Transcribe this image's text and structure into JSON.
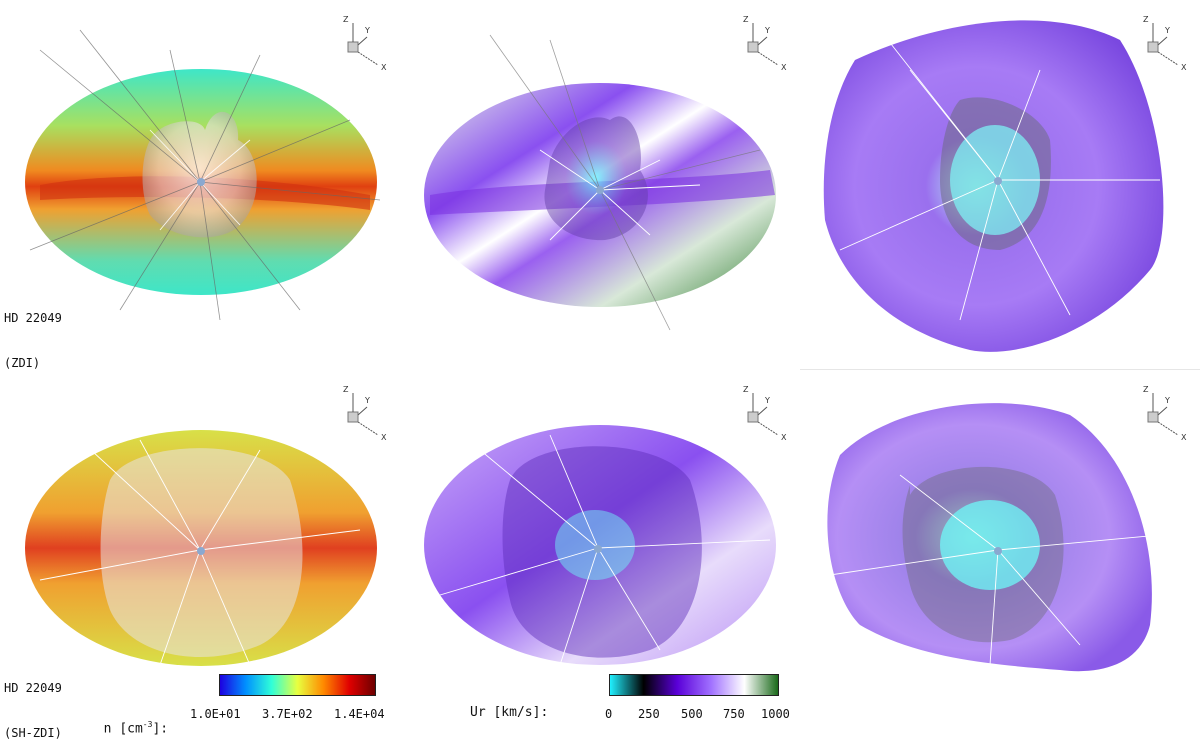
{
  "figure": {
    "rows": [
      {
        "star": "HD 22049",
        "map": "(ZDI)"
      },
      {
        "star": "HD 22049",
        "map": "(SH-ZDI)"
      }
    ],
    "axis_labels": {
      "z": "Z",
      "y": "Y",
      "x": "X"
    }
  },
  "colorbars": {
    "density": {
      "var": "n",
      "unit_open": "[cm",
      "unit_exp": "-3",
      "unit_close": "]:",
      "ticks": [
        "1.0E+01",
        "3.7E+02",
        "1.4E+04"
      ],
      "colors": [
        "#1d00e0",
        "#0090ff",
        "#30ffd8",
        "#e8ff40",
        "#ff8a00",
        "#e00000",
        "#6e0000"
      ]
    },
    "velocity": {
      "title": "Ur [km/s]:",
      "ticks": [
        "0",
        "250",
        "500",
        "750",
        "1000"
      ],
      "colors": [
        "#20f0ff",
        "#000000",
        "#5a00d8",
        "#a070ff",
        "#ffffff",
        "#1a6a1a"
      ]
    }
  }
}
